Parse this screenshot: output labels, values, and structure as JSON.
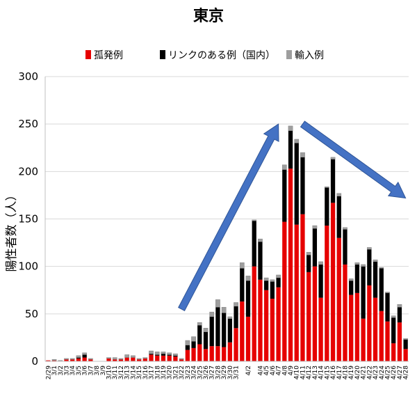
{
  "chart_data": {
    "type": "bar",
    "stacked": true,
    "title": "東京",
    "ylabel": "陽性者数（人）",
    "xlabel": "",
    "ylim": [
      0,
      300
    ],
    "yticks": [
      0,
      50,
      100,
      150,
      200,
      250,
      300
    ],
    "grid": "horizontal",
    "legend_position": "top",
    "legend": [
      "孤発例",
      "リンクのある例（国内）",
      "輸入例"
    ],
    "colors": {
      "isolated": "#e60000",
      "linked": "#000000",
      "imported": "#9e9e9e",
      "arrow": "#4472c4"
    },
    "categories": [
      "2/29",
      "3/1",
      "3/2",
      "3/3",
      "3/4",
      "3/5",
      "3/6",
      "3/7",
      "3/8",
      "3/9",
      "3/10",
      "3/11",
      "3/12",
      "3/13",
      "3/14",
      "3/15",
      "3/16",
      "3/17",
      "3/18",
      "3/19",
      "3/20",
      "3/21",
      "3/22",
      "3/23",
      "3/24",
      "3/25",
      "3/26",
      "3/27",
      "3/28",
      "3/29",
      "3/30",
      "3/31",
      "4/1",
      "4/2",
      "4/3",
      "4/4",
      "4/5",
      "4/6",
      "4/7",
      "4/8",
      "4/9",
      "4/10",
      "4/11",
      "4/12",
      "4/13",
      "4/14",
      "4/15",
      "4/16",
      "4/17",
      "4/18",
      "4/19",
      "4/20",
      "4/21",
      "4/22",
      "4/23",
      "4/24",
      "4/25",
      "4/26",
      "4/27",
      "4/28"
    ],
    "x_tick_labels": [
      "2/29",
      "3/1",
      "3/2",
      "3/3",
      "3/4",
      "3/5",
      "3/6",
      "3/7",
      "3/8",
      "3/9",
      "3/10",
      "3/11",
      "3/12",
      "3/13",
      "3/14",
      "3/15",
      "3/16",
      "3/17",
      "3/18",
      "3/19",
      "3/20",
      "3/21",
      "3/22",
      "3/23",
      "3/24",
      "3/25",
      "3/26",
      "3/27",
      "3/28",
      "3/29",
      "3/30",
      "3/31",
      "4/2",
      "4/4",
      "4/5",
      "4/6",
      "4/7",
      "4/8",
      "4/9",
      "4/10",
      "4/11",
      "4/12",
      "4/13",
      "4/14",
      "4/15",
      "4/16",
      "4/17",
      "4/18",
      "4/19",
      "4/20",
      "4/21",
      "4/22",
      "4/23",
      "4/24",
      "4/25",
      "4/26",
      "4/27",
      "4/28"
    ],
    "series": [
      {
        "name": "孤発例",
        "color": "#e60000",
        "values": [
          1,
          1,
          0,
          2,
          2,
          3,
          4,
          2,
          0,
          0,
          3,
          2,
          2,
          4,
          4,
          2,
          3,
          7,
          6,
          6,
          6,
          5,
          2,
          12,
          14,
          18,
          13,
          16,
          16,
          15,
          20,
          35,
          63,
          47,
          100,
          86,
          75,
          66,
          78,
          147,
          203,
          144,
          155,
          94,
          100,
          67,
          143,
          167,
          130,
          102,
          70,
          72,
          45,
          80,
          67,
          53,
          42,
          19,
          41,
          13
        ]
      },
      {
        "name": "リンクのある例（国内）",
        "color": "#000000",
        "values": [
          0,
          0,
          0,
          0,
          0,
          1,
          3,
          0,
          0,
          0,
          0,
          0,
          0,
          0,
          0,
          0,
          0,
          1,
          1,
          2,
          1,
          1,
          0,
          5,
          7,
          20,
          18,
          31,
          41,
          36,
          25,
          23,
          35,
          38,
          48,
          40,
          10,
          18,
          10,
          55,
          40,
          86,
          60,
          18,
          40,
          35,
          40,
          46,
          44,
          37,
          15,
          30,
          55,
          38,
          38,
          45,
          30,
          27,
          16,
          10
        ]
      },
      {
        "name": "輸入例",
        "color": "#9e9e9e",
        "values": [
          0,
          1,
          1,
          1,
          1,
          2,
          2,
          1,
          0,
          0,
          1,
          2,
          1,
          3,
          2,
          1,
          1,
          3,
          3,
          2,
          2,
          2,
          1,
          5,
          5,
          3,
          4,
          5,
          8,
          6,
          2,
          4,
          6,
          5,
          1,
          3,
          3,
          2,
          3,
          5,
          5,
          4,
          5,
          3,
          3,
          3,
          1,
          2,
          3,
          2,
          2,
          2,
          2,
          2,
          2,
          1,
          1,
          2,
          3,
          1
        ]
      }
    ],
    "annotations": [
      {
        "type": "arrow",
        "direction": "up",
        "from_category": "3/22",
        "from_value": 55,
        "to_category": "4/7",
        "to_value": 250
      },
      {
        "type": "arrow",
        "direction": "down",
        "from_category": "4/11",
        "from_value": 250,
        "to_category": "4/28",
        "to_value": 172
      }
    ]
  }
}
